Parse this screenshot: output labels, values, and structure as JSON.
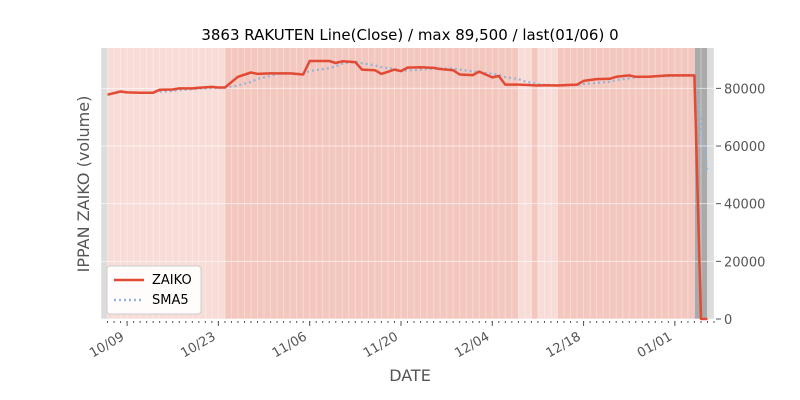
{
  "chart_data": {
    "type": "line",
    "title": "3863 RAKUTEN Line(Close) / max 89,500 / last(01/06) 0",
    "xlabel": "DATE",
    "ylabel": "IPPAN ZAIKO (volume)",
    "ylim": [
      0,
      94000
    ],
    "xlim": [
      "2023-10-05",
      "2024-01-07"
    ],
    "yticks": [
      0,
      20000,
      40000,
      60000,
      80000
    ],
    "ytick_labels": [
      "0",
      "20000",
      "40000",
      "60000",
      "80000"
    ],
    "xticks": [
      "2023-10-09",
      "2023-10-23",
      "2023-11-06",
      "2023-11-20",
      "2023-12-04",
      "2023-12-18",
      "2024-01-01"
    ],
    "xtick_labels": [
      "10/09",
      "10/23",
      "11/06",
      "11/20",
      "12/04",
      "12/18",
      "01/01"
    ],
    "grid": true,
    "legend_position": "lower-left",
    "background_bands": [
      {
        "from": "2023-10-05",
        "to": "2023-10-06",
        "color": "#dcdcdc"
      },
      {
        "from": "2023-10-06",
        "to": "2023-10-24",
        "color": "#f8dcd7"
      },
      {
        "from": "2023-10-24",
        "to": "2023-12-08",
        "color": "#f3c6be"
      },
      {
        "from": "2023-12-08",
        "to": "2023-12-10",
        "color": "#f8dcd7"
      },
      {
        "from": "2023-12-10",
        "to": "2023-12-11",
        "color": "#f3c6be"
      },
      {
        "from": "2023-12-11",
        "to": "2023-12-14",
        "color": "#f8dcd7"
      },
      {
        "from": "2023-12-14",
        "to": "2024-01-04",
        "color": "#f3c6be"
      },
      {
        "from": "2024-01-04",
        "to": "2024-01-06",
        "color": "#aaaaaa"
      },
      {
        "from": "2024-01-06",
        "to": "2024-01-07",
        "color": "#dcdcdc"
      }
    ],
    "series": [
      {
        "name": "ZAIKO",
        "color": "#e24a33",
        "style": "solid",
        "points": [
          [
            "2023-10-06",
            77800
          ],
          [
            "2023-10-08",
            78900
          ],
          [
            "2023-10-09",
            78600
          ],
          [
            "2023-10-11",
            78500
          ],
          [
            "2023-10-13",
            78500
          ],
          [
            "2023-10-14",
            79500
          ],
          [
            "2023-10-16",
            79600
          ],
          [
            "2023-10-17",
            80000
          ],
          [
            "2023-10-19",
            80000
          ],
          [
            "2023-10-20",
            80200
          ],
          [
            "2023-10-22",
            80500
          ],
          [
            "2023-10-23",
            80300
          ],
          [
            "2023-10-24",
            80300
          ],
          [
            "2023-10-26",
            84000
          ],
          [
            "2023-10-28",
            85500
          ],
          [
            "2023-10-29",
            85000
          ],
          [
            "2023-10-31",
            85200
          ],
          [
            "2023-11-01",
            85200
          ],
          [
            "2023-11-03",
            85200
          ],
          [
            "2023-11-05",
            84800
          ],
          [
            "2023-11-06",
            89500
          ],
          [
            "2023-11-09",
            89500
          ],
          [
            "2023-11-10",
            88800
          ],
          [
            "2023-11-11",
            89400
          ],
          [
            "2023-11-13",
            89100
          ],
          [
            "2023-11-14",
            86500
          ],
          [
            "2023-11-16",
            86300
          ],
          [
            "2023-11-17",
            85000
          ],
          [
            "2023-11-19",
            86500
          ],
          [
            "2023-11-20",
            86000
          ],
          [
            "2023-11-21",
            87200
          ],
          [
            "2023-11-23",
            87300
          ],
          [
            "2023-11-25",
            87100
          ],
          [
            "2023-11-26",
            86700
          ],
          [
            "2023-11-28",
            86300
          ],
          [
            "2023-11-29",
            84800
          ],
          [
            "2023-12-01",
            84600
          ],
          [
            "2023-12-02",
            85800
          ],
          [
            "2023-12-04",
            83800
          ],
          [
            "2023-12-05",
            84300
          ],
          [
            "2023-12-06",
            81300
          ],
          [
            "2023-12-08",
            81300
          ],
          [
            "2023-12-09",
            81200
          ],
          [
            "2023-12-11",
            81000
          ],
          [
            "2023-12-12",
            81100
          ],
          [
            "2023-12-14",
            81000
          ],
          [
            "2023-12-16",
            81200
          ],
          [
            "2023-12-17",
            81300
          ],
          [
            "2023-12-18",
            82600
          ],
          [
            "2023-12-20",
            83200
          ],
          [
            "2023-12-22",
            83300
          ],
          [
            "2023-12-23",
            84000
          ],
          [
            "2023-12-25",
            84500
          ],
          [
            "2023-12-26",
            84000
          ],
          [
            "2023-12-28",
            84000
          ],
          [
            "2023-12-29",
            84200
          ],
          [
            "2023-12-31",
            84500
          ],
          [
            "2024-01-01",
            84500
          ],
          [
            "2024-01-03",
            84500
          ],
          [
            "2024-01-04",
            84500
          ],
          [
            "2024-01-05",
            0
          ],
          [
            "2024-01-06",
            0
          ]
        ]
      },
      {
        "name": "SMA5",
        "color": "#92b5d6",
        "style": "dotted",
        "points": [
          [
            "2023-10-14",
            78800
          ],
          [
            "2023-10-16",
            79100
          ],
          [
            "2023-10-17",
            79400
          ],
          [
            "2023-10-19",
            79700
          ],
          [
            "2023-10-20",
            79900
          ],
          [
            "2023-10-22",
            80100
          ],
          [
            "2023-10-23",
            80200
          ],
          [
            "2023-10-24",
            80300
          ],
          [
            "2023-10-26",
            81000
          ],
          [
            "2023-10-28",
            82200
          ],
          [
            "2023-10-29",
            83300
          ],
          [
            "2023-10-31",
            84300
          ],
          [
            "2023-11-01",
            85000
          ],
          [
            "2023-11-03",
            85200
          ],
          [
            "2023-11-05",
            85100
          ],
          [
            "2023-11-06",
            86000
          ],
          [
            "2023-11-09",
            87000
          ],
          [
            "2023-11-10",
            87700
          ],
          [
            "2023-11-11",
            88600
          ],
          [
            "2023-11-13",
            89200
          ],
          [
            "2023-11-14",
            88700
          ],
          [
            "2023-11-16",
            88000
          ],
          [
            "2023-11-17",
            87300
          ],
          [
            "2023-11-19",
            86800
          ],
          [
            "2023-11-20",
            86100
          ],
          [
            "2023-11-21",
            86200
          ],
          [
            "2023-11-23",
            86500
          ],
          [
            "2023-11-25",
            86800
          ],
          [
            "2023-11-26",
            86900
          ],
          [
            "2023-11-28",
            86900
          ],
          [
            "2023-11-29",
            86500
          ],
          [
            "2023-12-01",
            85900
          ],
          [
            "2023-12-02",
            85600
          ],
          [
            "2023-12-04",
            85000
          ],
          [
            "2023-12-05",
            84700
          ],
          [
            "2023-12-06",
            83900
          ],
          [
            "2023-12-08",
            83200
          ],
          [
            "2023-12-09",
            82400
          ],
          [
            "2023-12-11",
            81500
          ],
          [
            "2023-12-12",
            81200
          ],
          [
            "2023-12-14",
            81100
          ],
          [
            "2023-12-16",
            81100
          ],
          [
            "2023-12-17",
            81100
          ],
          [
            "2023-12-18",
            81500
          ],
          [
            "2023-12-20",
            81900
          ],
          [
            "2023-12-22",
            82300
          ],
          [
            "2023-12-23",
            82900
          ],
          [
            "2023-12-25",
            83500
          ],
          [
            "2023-12-26",
            83800
          ],
          [
            "2023-12-28",
            84000
          ],
          [
            "2023-12-29",
            84100
          ],
          [
            "2023-12-31",
            84200
          ],
          [
            "2024-01-01",
            84300
          ],
          [
            "2024-01-03",
            84400
          ],
          [
            "2024-01-04",
            84500
          ],
          [
            "2024-01-05",
            67600
          ],
          [
            "2024-01-06",
            50700
          ]
        ]
      }
    ]
  }
}
